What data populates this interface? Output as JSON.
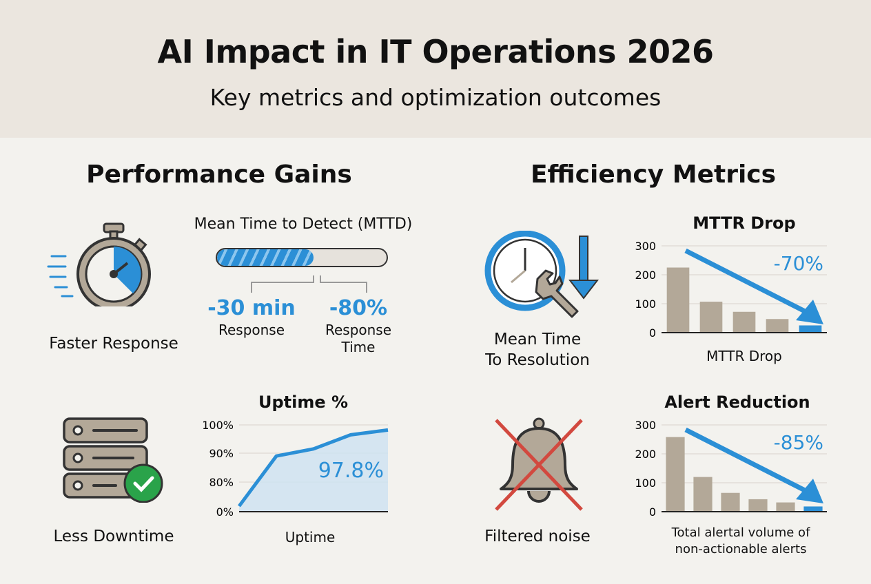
{
  "header": {
    "title": "AI Impact in IT Operations 2026",
    "subtitle": "Key metrics and optimization outcomes"
  },
  "left": {
    "heading": "Performance Gains",
    "faster_response": {
      "icon": "stopwatch-icon",
      "label": "Faster Response"
    },
    "mttd": {
      "title": "Mean Time to Detect (MTTD)",
      "progress_percent": 57,
      "stat1_value": "-30 min",
      "stat1_label": "Response",
      "stat2_value": "-80%",
      "stat2_label_line1": "Response",
      "stat2_label_line2": "Time"
    },
    "less_downtime": {
      "icon": "server-check-icon",
      "label": "Less Downtime"
    }
  },
  "right": {
    "heading": "Efficiency Metrics",
    "mttr_icon": {
      "icon": "clock-wrench-down-arrow-icon",
      "label_line1": "Mean Time",
      "label_line2": "To Resolution"
    },
    "filtered": {
      "icon": "bell-crossed-icon",
      "label": "Filtered noise"
    }
  },
  "colors": {
    "accent": "#2b8fd6",
    "bar": "#b3a898",
    "header_bg": "#ebe6df",
    "green": "#2aa34a",
    "cross": "#d2493f"
  },
  "chart_data": [
    {
      "type": "area",
      "title": "Uptime %",
      "xlabel": "Uptime",
      "y_ticks": [
        "0%",
        "80%",
        "90%",
        "100%"
      ],
      "y_tick_values": [
        0,
        80,
        90,
        100
      ],
      "values": [
        15,
        89,
        91.5,
        96.5,
        98.2
      ],
      "annotation": "97.8%",
      "grid": true
    },
    {
      "type": "bar",
      "title": "MTTR Drop",
      "xlabel": "MTTR Drop",
      "y_ticks": [
        "0",
        "100",
        "200",
        "300"
      ],
      "ylim": [
        0,
        300
      ],
      "values": [
        225,
        107,
        72,
        47,
        25
      ],
      "highlight_last": true,
      "annotation": "-70%",
      "trend_arrow": "down",
      "grid": true
    },
    {
      "type": "bar",
      "title": "Alert Reduction",
      "xlabel_line1": "Total alertal volume of",
      "xlabel_line2": "non-actionable alerts",
      "y_ticks": [
        "0",
        "100",
        "200",
        "300"
      ],
      "ylim": [
        0,
        300
      ],
      "values": [
        258,
        120,
        65,
        43,
        32,
        18
      ],
      "highlight_last": true,
      "annotation": "-85%",
      "trend_arrow": "down",
      "grid": true
    }
  ]
}
